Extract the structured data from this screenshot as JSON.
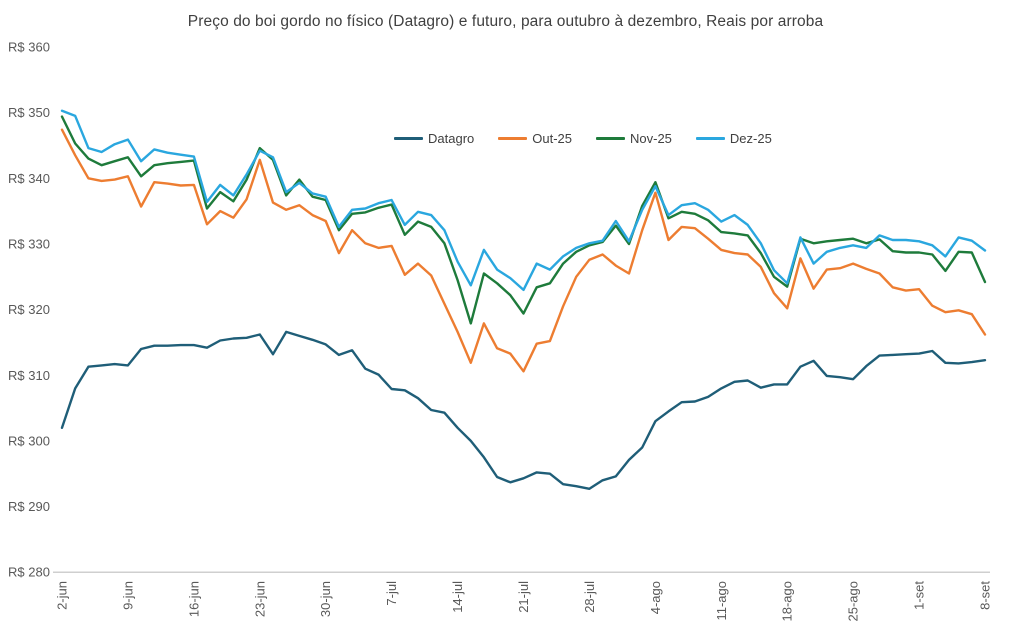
{
  "title": "Preço do boi gordo no físico (Datagro) e futuro, para outubro à dezembro, Reais por arroba",
  "chart_data": {
    "type": "line",
    "title": "Preço do boi gordo no físico (Datagro) e futuro, para outubro à dezembro, Reais por arroba",
    "ylabel": "",
    "xlabel": "",
    "ylim": [
      280,
      360
    ],
    "grid": false,
    "legend_position": "top-center",
    "axis_color": "#bfbfbf",
    "tick_color": "#595959",
    "title_color": "#404040",
    "y_ticks": [
      {
        "value": 360,
        "label": "R$ 360"
      },
      {
        "value": 350,
        "label": "R$ 350"
      },
      {
        "value": 340,
        "label": "R$ 340"
      },
      {
        "value": 330,
        "label": "R$ 330"
      },
      {
        "value": 320,
        "label": "R$ 320"
      },
      {
        "value": 310,
        "label": "R$ 310"
      },
      {
        "value": 300,
        "label": "R$ 300"
      },
      {
        "value": 290,
        "label": "R$ 290"
      },
      {
        "value": 280,
        "label": "R$ 280"
      }
    ],
    "x_tick_labels": [
      "2-jun",
      "9-jun",
      "16-jun",
      "23-jun",
      "30-jun",
      "7-jul",
      "14-jul",
      "21-jul",
      "28-jul",
      "4-ago",
      "11-ago",
      "18-ago",
      "25-ago",
      "1-set",
      "8-set"
    ],
    "categories": [
      "2-jun",
      "3-jun",
      "4-jun",
      "5-jun",
      "6-jun",
      "9-jun",
      "10-jun",
      "11-jun",
      "12-jun",
      "13-jun",
      "16-jun",
      "17-jun",
      "18-jun",
      "19-jun",
      "20-jun",
      "23-jun",
      "24-jun",
      "25-jun",
      "26-jun",
      "27-jun",
      "30-jun",
      "1-jul",
      "2-jul",
      "3-jul",
      "4-jul",
      "7-jul",
      "8-jul",
      "9-jul",
      "10-jul",
      "11-jul",
      "14-jul",
      "15-jul",
      "16-jul",
      "17-jul",
      "18-jul",
      "21-jul",
      "22-jul",
      "23-jul",
      "24-jul",
      "25-jul",
      "28-jul",
      "29-jul",
      "30-jul",
      "31-jul",
      "1-ago",
      "4-ago",
      "5-ago",
      "6-ago",
      "7-ago",
      "8-ago",
      "11-ago",
      "12-ago",
      "13-ago",
      "14-ago",
      "15-ago",
      "18-ago",
      "19-ago",
      "20-ago",
      "21-ago",
      "22-ago",
      "25-ago",
      "26-ago",
      "27-ago",
      "28-ago",
      "29-ago",
      "1-set",
      "2-set",
      "3-set",
      "4-set",
      "5-set",
      "8-set"
    ],
    "series": [
      {
        "name": "Datagro",
        "color": "#1f5e78",
        "values": [
          302.0,
          308.0,
          311.3,
          311.5,
          311.7,
          311.5,
          314.0,
          314.5,
          314.5,
          314.6,
          314.6,
          314.2,
          315.3,
          315.6,
          315.7,
          316.2,
          313.2,
          316.6,
          316.0,
          315.4,
          314.7,
          313.1,
          313.8,
          311.0,
          310.1,
          307.9,
          307.7,
          306.5,
          304.7,
          304.3,
          302.0,
          300.0,
          297.5,
          294.5,
          293.7,
          294.3,
          295.2,
          295.0,
          293.4,
          293.1,
          292.7,
          294.0,
          294.6,
          297.1,
          299.0,
          303.0,
          304.5,
          305.9,
          306.0,
          306.7,
          308.0,
          309.0,
          309.2,
          308.1,
          308.6,
          308.6,
          311.3,
          312.2,
          309.9,
          309.7,
          309.4,
          311.4,
          313.0,
          313.1,
          313.2,
          313.3,
          313.7,
          311.9,
          311.8,
          312.0,
          312.3
        ]
      },
      {
        "name": "Out-25",
        "color": "#ed7d31",
        "values": [
          347.4,
          343.5,
          340.0,
          339.6,
          339.8,
          340.3,
          335.7,
          339.4,
          339.2,
          338.9,
          339.0,
          333.0,
          335.0,
          334.0,
          336.8,
          342.8,
          336.3,
          335.2,
          335.9,
          334.4,
          333.5,
          328.6,
          332.1,
          330.1,
          329.4,
          329.7,
          325.3,
          327.0,
          325.2,
          320.9,
          316.6,
          311.9,
          317.9,
          314.1,
          313.3,
          310.6,
          314.8,
          315.2,
          320.5,
          325.0,
          327.6,
          328.4,
          326.7,
          325.5,
          332.1,
          337.8,
          330.6,
          332.6,
          332.4,
          330.8,
          329.1,
          328.6,
          328.4,
          326.5,
          322.5,
          320.2,
          327.8,
          323.2,
          326.1,
          326.3,
          327.0,
          326.2,
          325.5,
          323.4,
          322.9,
          323.1,
          320.6,
          319.6,
          319.9,
          319.3,
          316.2
        ]
      },
      {
        "name": "Nov-25",
        "color": "#1e7b3b",
        "values": [
          349.4,
          345.3,
          343.0,
          342.0,
          342.6,
          343.2,
          340.3,
          342.0,
          342.3,
          342.5,
          342.7,
          335.4,
          337.9,
          336.5,
          339.8,
          344.6,
          342.8,
          337.4,
          339.8,
          337.2,
          336.7,
          332.1,
          334.6,
          334.8,
          335.5,
          336.0,
          331.4,
          333.4,
          332.6,
          330.1,
          324.5,
          317.9,
          325.5,
          324.0,
          322.2,
          319.4,
          323.4,
          324.0,
          327.0,
          328.8,
          329.8,
          330.3,
          332.8,
          330.0,
          335.8,
          339.4,
          333.9,
          334.9,
          334.6,
          333.6,
          331.8,
          331.6,
          331.3,
          328.6,
          325.0,
          323.5,
          330.8,
          330.1,
          330.4,
          330.6,
          330.8,
          330.1,
          330.7,
          328.9,
          328.7,
          328.7,
          328.4,
          325.9,
          328.8,
          328.7,
          324.2
        ]
      },
      {
        "name": "Dez-25",
        "color": "#2aa7df",
        "values": [
          350.3,
          349.5,
          344.6,
          344.0,
          345.2,
          345.9,
          342.6,
          344.4,
          343.9,
          343.6,
          343.3,
          336.4,
          339.0,
          337.4,
          340.6,
          344.2,
          343.2,
          337.9,
          339.3,
          337.7,
          337.2,
          332.6,
          335.2,
          335.4,
          336.2,
          336.7,
          332.9,
          334.9,
          334.4,
          332.1,
          327.3,
          323.7,
          329.1,
          326.1,
          324.8,
          323.0,
          327.0,
          326.1,
          328.1,
          329.4,
          330.1,
          330.5,
          333.5,
          330.4,
          335.2,
          338.8,
          334.4,
          335.9,
          336.2,
          335.2,
          333.4,
          334.4,
          332.9,
          330.1,
          326.0,
          324.0,
          331.0,
          327.0,
          328.8,
          329.4,
          329.8,
          329.4,
          331.3,
          330.6,
          330.6,
          330.4,
          329.8,
          328.1,
          331.0,
          330.5,
          329.0
        ]
      }
    ]
  }
}
